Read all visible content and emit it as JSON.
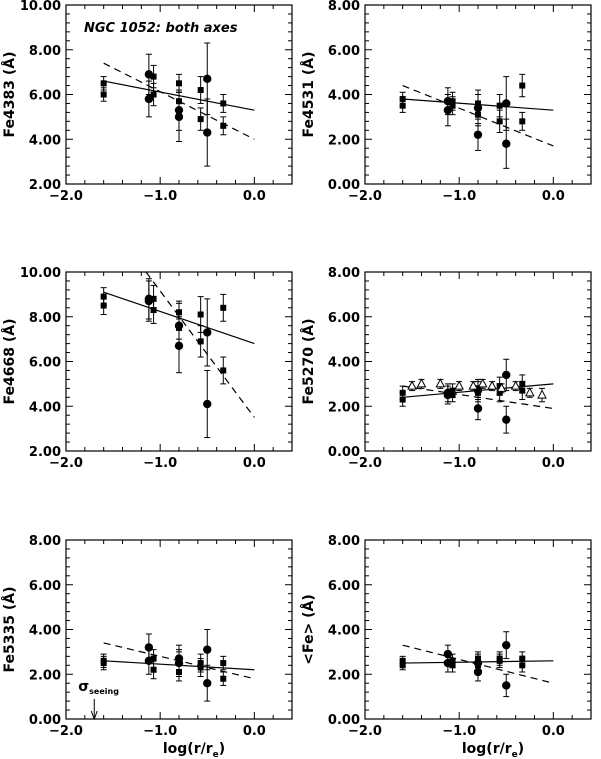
{
  "figure_title": "NGC 1052: both axes",
  "annotation": {
    "sigma": "σ",
    "subscript": "seeing",
    "x": -1.7
  },
  "chart_data": [
    {
      "type": "scatter",
      "ylabel": "Fe4383 (Å)",
      "xlabel": "",
      "xlim": [
        -2.0,
        0.4
      ],
      "ylim": [
        2.0,
        10.0
      ],
      "xticks": [
        {
          "v": -2.0,
          "label": "−2.0"
        },
        {
          "v": -1.0,
          "label": "−1.0"
        },
        {
          "v": 0.0,
          "label": "0.0"
        }
      ],
      "yticks": [
        {
          "v": 2.0,
          "label": "2.00"
        },
        {
          "v": 4.0,
          "label": "4.00"
        },
        {
          "v": 6.0,
          "label": "6.00"
        },
        {
          "v": 8.0,
          "label": "8.00"
        },
        {
          "v": 10.0,
          "label": "10.00"
        }
      ],
      "title": "NGC 1052: both axes",
      "series": [
        {
          "marker": "square",
          "points": [
            {
              "x": -1.6,
              "y": 6.5,
              "err": 0.3
            },
            {
              "x": -1.6,
              "y": 6.0,
              "err": 0.3
            },
            {
              "x": -1.07,
              "y": 6.8,
              "err": 0.5
            },
            {
              "x": -1.07,
              "y": 6.0,
              "err": 0.5
            },
            {
              "x": -0.8,
              "y": 6.5,
              "err": 0.4
            },
            {
              "x": -0.8,
              "y": 5.7,
              "err": 0.4
            },
            {
              "x": -0.57,
              "y": 6.2,
              "err": 0.6
            },
            {
              "x": -0.57,
              "y": 4.9,
              "err": 0.5
            },
            {
              "x": -0.33,
              "y": 5.6,
              "err": 0.4
            },
            {
              "x": -0.33,
              "y": 4.6,
              "err": 0.4
            }
          ]
        },
        {
          "marker": "circle",
          "points": [
            {
              "x": -1.12,
              "y": 6.9,
              "err": 0.9
            },
            {
              "x": -1.12,
              "y": 5.8,
              "err": 0.8
            },
            {
              "x": -0.8,
              "y": 5.3,
              "err": 0.9
            },
            {
              "x": -0.8,
              "y": 5.0,
              "err": 1.1
            },
            {
              "x": -0.5,
              "y": 6.7,
              "err": 1.6
            },
            {
              "x": -0.5,
              "y": 4.3,
              "err": 1.5
            }
          ]
        }
      ],
      "fits": [
        {
          "style": "solid",
          "x": [
            -1.6,
            0.0
          ],
          "y": [
            6.6,
            5.3
          ]
        },
        {
          "style": "dashed",
          "x": [
            -1.6,
            0.0
          ],
          "y": [
            7.4,
            4.0
          ]
        }
      ]
    },
    {
      "type": "scatter",
      "ylabel": "Fe4531 (Å)",
      "xlabel": "",
      "xlim": [
        -2.0,
        0.4
      ],
      "ylim": [
        0.0,
        8.0
      ],
      "xticks": [
        {
          "v": -2.0,
          "label": "−2.0"
        },
        {
          "v": -1.0,
          "label": "−1.0"
        },
        {
          "v": 0.0,
          "label": "0.0"
        }
      ],
      "yticks": [
        {
          "v": 0.0,
          "label": "0.00"
        },
        {
          "v": 2.0,
          "label": "2.00"
        },
        {
          "v": 4.0,
          "label": "4.00"
        },
        {
          "v": 6.0,
          "label": "6.00"
        },
        {
          "v": 8.0,
          "label": "8.00"
        }
      ],
      "series": [
        {
          "marker": "square",
          "points": [
            {
              "x": -1.6,
              "y": 3.8,
              "err": 0.3
            },
            {
              "x": -1.6,
              "y": 3.5,
              "err": 0.3
            },
            {
              "x": -1.07,
              "y": 3.7,
              "err": 0.4
            },
            {
              "x": -1.07,
              "y": 3.5,
              "err": 0.4
            },
            {
              "x": -0.8,
              "y": 3.6,
              "err": 0.4
            },
            {
              "x": -0.8,
              "y": 3.1,
              "err": 0.4
            },
            {
              "x": -0.57,
              "y": 3.5,
              "err": 0.5
            },
            {
              "x": -0.57,
              "y": 2.8,
              "err": 0.5
            },
            {
              "x": -0.33,
              "y": 4.4,
              "err": 0.5
            },
            {
              "x": -0.33,
              "y": 2.8,
              "err": 0.4
            }
          ]
        },
        {
          "marker": "circle",
          "points": [
            {
              "x": -1.12,
              "y": 3.7,
              "err": 0.6
            },
            {
              "x": -1.12,
              "y": 3.3,
              "err": 0.7
            },
            {
              "x": -0.8,
              "y": 3.4,
              "err": 0.8
            },
            {
              "x": -0.8,
              "y": 2.2,
              "err": 0.7
            },
            {
              "x": -0.5,
              "y": 3.6,
              "err": 1.2
            },
            {
              "x": -0.5,
              "y": 1.8,
              "err": 1.1
            }
          ]
        }
      ],
      "fits": [
        {
          "style": "solid",
          "x": [
            -1.6,
            0.0
          ],
          "y": [
            3.8,
            3.3
          ]
        },
        {
          "style": "dashed",
          "x": [
            -1.6,
            0.0
          ],
          "y": [
            4.4,
            1.7
          ]
        }
      ]
    },
    {
      "type": "scatter",
      "ylabel": "Fe4668 (Å)",
      "xlabel": "",
      "xlim": [
        -2.0,
        0.4
      ],
      "ylim": [
        2.0,
        10.0
      ],
      "xticks": [
        {
          "v": -2.0,
          "label": "−2.0"
        },
        {
          "v": -1.0,
          "label": "−1.0"
        },
        {
          "v": 0.0,
          "label": "0.0"
        }
      ],
      "yticks": [
        {
          "v": 2.0,
          "label": "2.00"
        },
        {
          "v": 4.0,
          "label": "4.00"
        },
        {
          "v": 6.0,
          "label": "6.00"
        },
        {
          "v": 8.0,
          "label": "8.00"
        },
        {
          "v": 10.0,
          "label": "10.00"
        }
      ],
      "series": [
        {
          "marker": "square",
          "points": [
            {
              "x": -1.6,
              "y": 8.9,
              "err": 0.4
            },
            {
              "x": -1.6,
              "y": 8.5,
              "err": 0.4
            },
            {
              "x": -1.07,
              "y": 8.8,
              "err": 0.6
            },
            {
              "x": -1.07,
              "y": 8.3,
              "err": 0.6
            },
            {
              "x": -0.8,
              "y": 8.2,
              "err": 0.5
            },
            {
              "x": -0.8,
              "y": 7.5,
              "err": 0.5
            },
            {
              "x": -0.57,
              "y": 8.1,
              "err": 0.8
            },
            {
              "x": -0.57,
              "y": 6.9,
              "err": 0.7
            },
            {
              "x": -0.33,
              "y": 8.4,
              "err": 0.6
            },
            {
              "x": -0.33,
              "y": 5.6,
              "err": 0.6
            }
          ]
        },
        {
          "marker": "circle",
          "points": [
            {
              "x": -1.12,
              "y": 8.8,
              "err": 0.9
            },
            {
              "x": -1.12,
              "y": 8.7,
              "err": 0.9
            },
            {
              "x": -0.8,
              "y": 7.6,
              "err": 1.0
            },
            {
              "x": -0.8,
              "y": 6.7,
              "err": 1.2
            },
            {
              "x": -0.5,
              "y": 7.3,
              "err": 1.5
            },
            {
              "x": -0.5,
              "y": 4.1,
              "err": 1.5
            }
          ]
        }
      ],
      "fits": [
        {
          "style": "solid",
          "x": [
            -1.6,
            0.0
          ],
          "y": [
            9.1,
            6.8
          ]
        },
        {
          "style": "dashed",
          "x": [
            -1.15,
            0.0
          ],
          "y": [
            10.0,
            3.5
          ]
        }
      ]
    },
    {
      "type": "scatter",
      "ylabel": "Fe5270 (Å)",
      "xlabel": "",
      "xlim": [
        -2.0,
        0.4
      ],
      "ylim": [
        0.0,
        8.0
      ],
      "xticks": [
        {
          "v": -2.0,
          "label": "−2.0"
        },
        {
          "v": -1.0,
          "label": "−1.0"
        },
        {
          "v": 0.0,
          "label": "0.0"
        }
      ],
      "yticks": [
        {
          "v": 0.0,
          "label": "0.00"
        },
        {
          "v": 2.0,
          "label": "2.00"
        },
        {
          "v": 4.0,
          "label": "4.00"
        },
        {
          "v": 6.0,
          "label": "6.00"
        },
        {
          "v": 8.0,
          "label": "8.00"
        }
      ],
      "series": [
        {
          "marker": "square",
          "points": [
            {
              "x": -1.6,
              "y": 2.6,
              "err": 0.3
            },
            {
              "x": -1.6,
              "y": 2.3,
              "err": 0.3
            },
            {
              "x": -1.07,
              "y": 2.7,
              "err": 0.3
            },
            {
              "x": -1.07,
              "y": 2.5,
              "err": 0.3
            },
            {
              "x": -0.8,
              "y": 2.8,
              "err": 0.3
            },
            {
              "x": -0.8,
              "y": 2.6,
              "err": 0.3
            },
            {
              "x": -0.57,
              "y": 2.9,
              "err": 0.4
            },
            {
              "x": -0.57,
              "y": 2.6,
              "err": 0.4
            },
            {
              "x": -0.33,
              "y": 3.0,
              "err": 0.4
            },
            {
              "x": -0.33,
              "y": 2.7,
              "err": 0.4
            }
          ]
        },
        {
          "marker": "circle",
          "points": [
            {
              "x": -1.12,
              "y": 2.6,
              "err": 0.4
            },
            {
              "x": -1.12,
              "y": 2.5,
              "err": 0.4
            },
            {
              "x": -0.8,
              "y": 2.7,
              "err": 0.5
            },
            {
              "x": -0.8,
              "y": 1.9,
              "err": 0.5
            },
            {
              "x": -0.5,
              "y": 3.4,
              "err": 0.7
            },
            {
              "x": -0.5,
              "y": 1.4,
              "err": 0.6
            }
          ]
        },
        {
          "marker": "triangle",
          "points": [
            {
              "x": -1.5,
              "y": 2.9,
              "err": 0.2
            },
            {
              "x": -1.4,
              "y": 3.0,
              "err": 0.2
            },
            {
              "x": -1.2,
              "y": 3.0,
              "err": 0.2
            },
            {
              "x": -1.0,
              "y": 2.9,
              "err": 0.2
            },
            {
              "x": -0.85,
              "y": 2.9,
              "err": 0.2
            },
            {
              "x": -0.75,
              "y": 3.0,
              "err": 0.2
            },
            {
              "x": -0.65,
              "y": 2.9,
              "err": 0.2
            },
            {
              "x": -0.55,
              "y": 2.8,
              "err": 0.2
            },
            {
              "x": -0.4,
              "y": 2.9,
              "err": 0.2
            },
            {
              "x": -0.25,
              "y": 2.6,
              "err": 0.2
            },
            {
              "x": -0.12,
              "y": 2.5,
              "err": 0.3
            }
          ]
        }
      ],
      "fits": [
        {
          "style": "solid",
          "x": [
            -1.6,
            0.0
          ],
          "y": [
            2.4,
            3.0
          ]
        },
        {
          "style": "dashed",
          "x": [
            -1.6,
            0.0
          ],
          "y": [
            2.9,
            1.9
          ]
        }
      ]
    },
    {
      "type": "scatter",
      "ylabel": "Fe5335 (Å)",
      "xlabel": "log(r/r",
      "xlabel_sub": "e",
      "xlabel_tail": ")",
      "xlim": [
        -2.0,
        0.4
      ],
      "ylim": [
        0.0,
        8.0
      ],
      "xticks": [
        {
          "v": -2.0,
          "label": "−2.0"
        },
        {
          "v": -1.0,
          "label": "−1.0"
        },
        {
          "v": 0.0,
          "label": "0.0"
        }
      ],
      "yticks": [
        {
          "v": 0.0,
          "label": "0.00"
        },
        {
          "v": 2.0,
          "label": "2.00"
        },
        {
          "v": 4.0,
          "label": "4.00"
        },
        {
          "v": 6.0,
          "label": "6.00"
        },
        {
          "v": 8.0,
          "label": "8.00"
        }
      ],
      "series": [
        {
          "marker": "square",
          "points": [
            {
              "x": -1.6,
              "y": 2.6,
              "err": 0.3
            },
            {
              "x": -1.6,
              "y": 2.5,
              "err": 0.3
            },
            {
              "x": -1.07,
              "y": 2.7,
              "err": 0.4
            },
            {
              "x": -1.07,
              "y": 2.2,
              "err": 0.4
            },
            {
              "x": -0.8,
              "y": 2.6,
              "err": 0.4
            },
            {
              "x": -0.8,
              "y": 2.1,
              "err": 0.4
            },
            {
              "x": -0.57,
              "y": 2.5,
              "err": 0.4
            },
            {
              "x": -0.57,
              "y": 2.3,
              "err": 0.4
            },
            {
              "x": -0.33,
              "y": 2.5,
              "err": 0.3
            },
            {
              "x": -0.33,
              "y": 1.8,
              "err": 0.3
            }
          ]
        },
        {
          "marker": "circle",
          "points": [
            {
              "x": -1.12,
              "y": 3.2,
              "err": 0.6
            },
            {
              "x": -1.12,
              "y": 2.6,
              "err": 0.6
            },
            {
              "x": -0.8,
              "y": 2.7,
              "err": 0.6
            },
            {
              "x": -0.8,
              "y": 2.5,
              "err": 0.6
            },
            {
              "x": -0.5,
              "y": 3.1,
              "err": 0.9
            },
            {
              "x": -0.5,
              "y": 1.6,
              "err": 0.8
            }
          ]
        }
      ],
      "fits": [
        {
          "style": "solid",
          "x": [
            -1.6,
            0.0
          ],
          "y": [
            2.6,
            2.2
          ]
        },
        {
          "style": "dashed",
          "x": [
            -1.6,
            0.0
          ],
          "y": [
            3.4,
            1.8
          ]
        }
      ]
    },
    {
      "type": "scatter",
      "ylabel": "<Fe> (Å)",
      "xlabel": "log(r/r",
      "xlabel_sub": "e",
      "xlabel_tail": ")",
      "xlim": [
        -2.0,
        0.4
      ],
      "ylim": [
        0.0,
        8.0
      ],
      "xticks": [
        {
          "v": -2.0,
          "label": "−2.0"
        },
        {
          "v": -1.0,
          "label": "−1.0"
        },
        {
          "v": 0.0,
          "label": "0.0"
        }
      ],
      "yticks": [
        {
          "v": 0.0,
          "label": "0.00"
        },
        {
          "v": 2.0,
          "label": "2.00"
        },
        {
          "v": 4.0,
          "label": "4.00"
        },
        {
          "v": 6.0,
          "label": "6.00"
        },
        {
          "v": 8.0,
          "label": "8.00"
        }
      ],
      "series": [
        {
          "marker": "square",
          "points": [
            {
              "x": -1.6,
              "y": 2.6,
              "err": 0.2
            },
            {
              "x": -1.6,
              "y": 2.4,
              "err": 0.2
            },
            {
              "x": -1.07,
              "y": 2.6,
              "err": 0.3
            },
            {
              "x": -1.07,
              "y": 2.4,
              "err": 0.3
            },
            {
              "x": -0.8,
              "y": 2.7,
              "err": 0.3
            },
            {
              "x": -0.8,
              "y": 2.4,
              "err": 0.3
            },
            {
              "x": -0.57,
              "y": 2.7,
              "err": 0.3
            },
            {
              "x": -0.57,
              "y": 2.6,
              "err": 0.3
            },
            {
              "x": -0.33,
              "y": 2.7,
              "err": 0.3
            },
            {
              "x": -0.33,
              "y": 2.4,
              "err": 0.3
            }
          ]
        },
        {
          "marker": "circle",
          "points": [
            {
              "x": -1.12,
              "y": 2.9,
              "err": 0.4
            },
            {
              "x": -1.12,
              "y": 2.5,
              "err": 0.4
            },
            {
              "x": -0.8,
              "y": 2.5,
              "err": 0.4
            },
            {
              "x": -0.8,
              "y": 2.1,
              "err": 0.4
            },
            {
              "x": -0.5,
              "y": 3.3,
              "err": 0.6
            },
            {
              "x": -0.5,
              "y": 1.5,
              "err": 0.5
            }
          ]
        }
      ],
      "fits": [
        {
          "style": "solid",
          "x": [
            -1.6,
            0.0
          ],
          "y": [
            2.5,
            2.6
          ]
        },
        {
          "style": "dashed",
          "x": [
            -1.6,
            0.0
          ],
          "y": [
            3.3,
            1.6
          ]
        }
      ]
    }
  ]
}
